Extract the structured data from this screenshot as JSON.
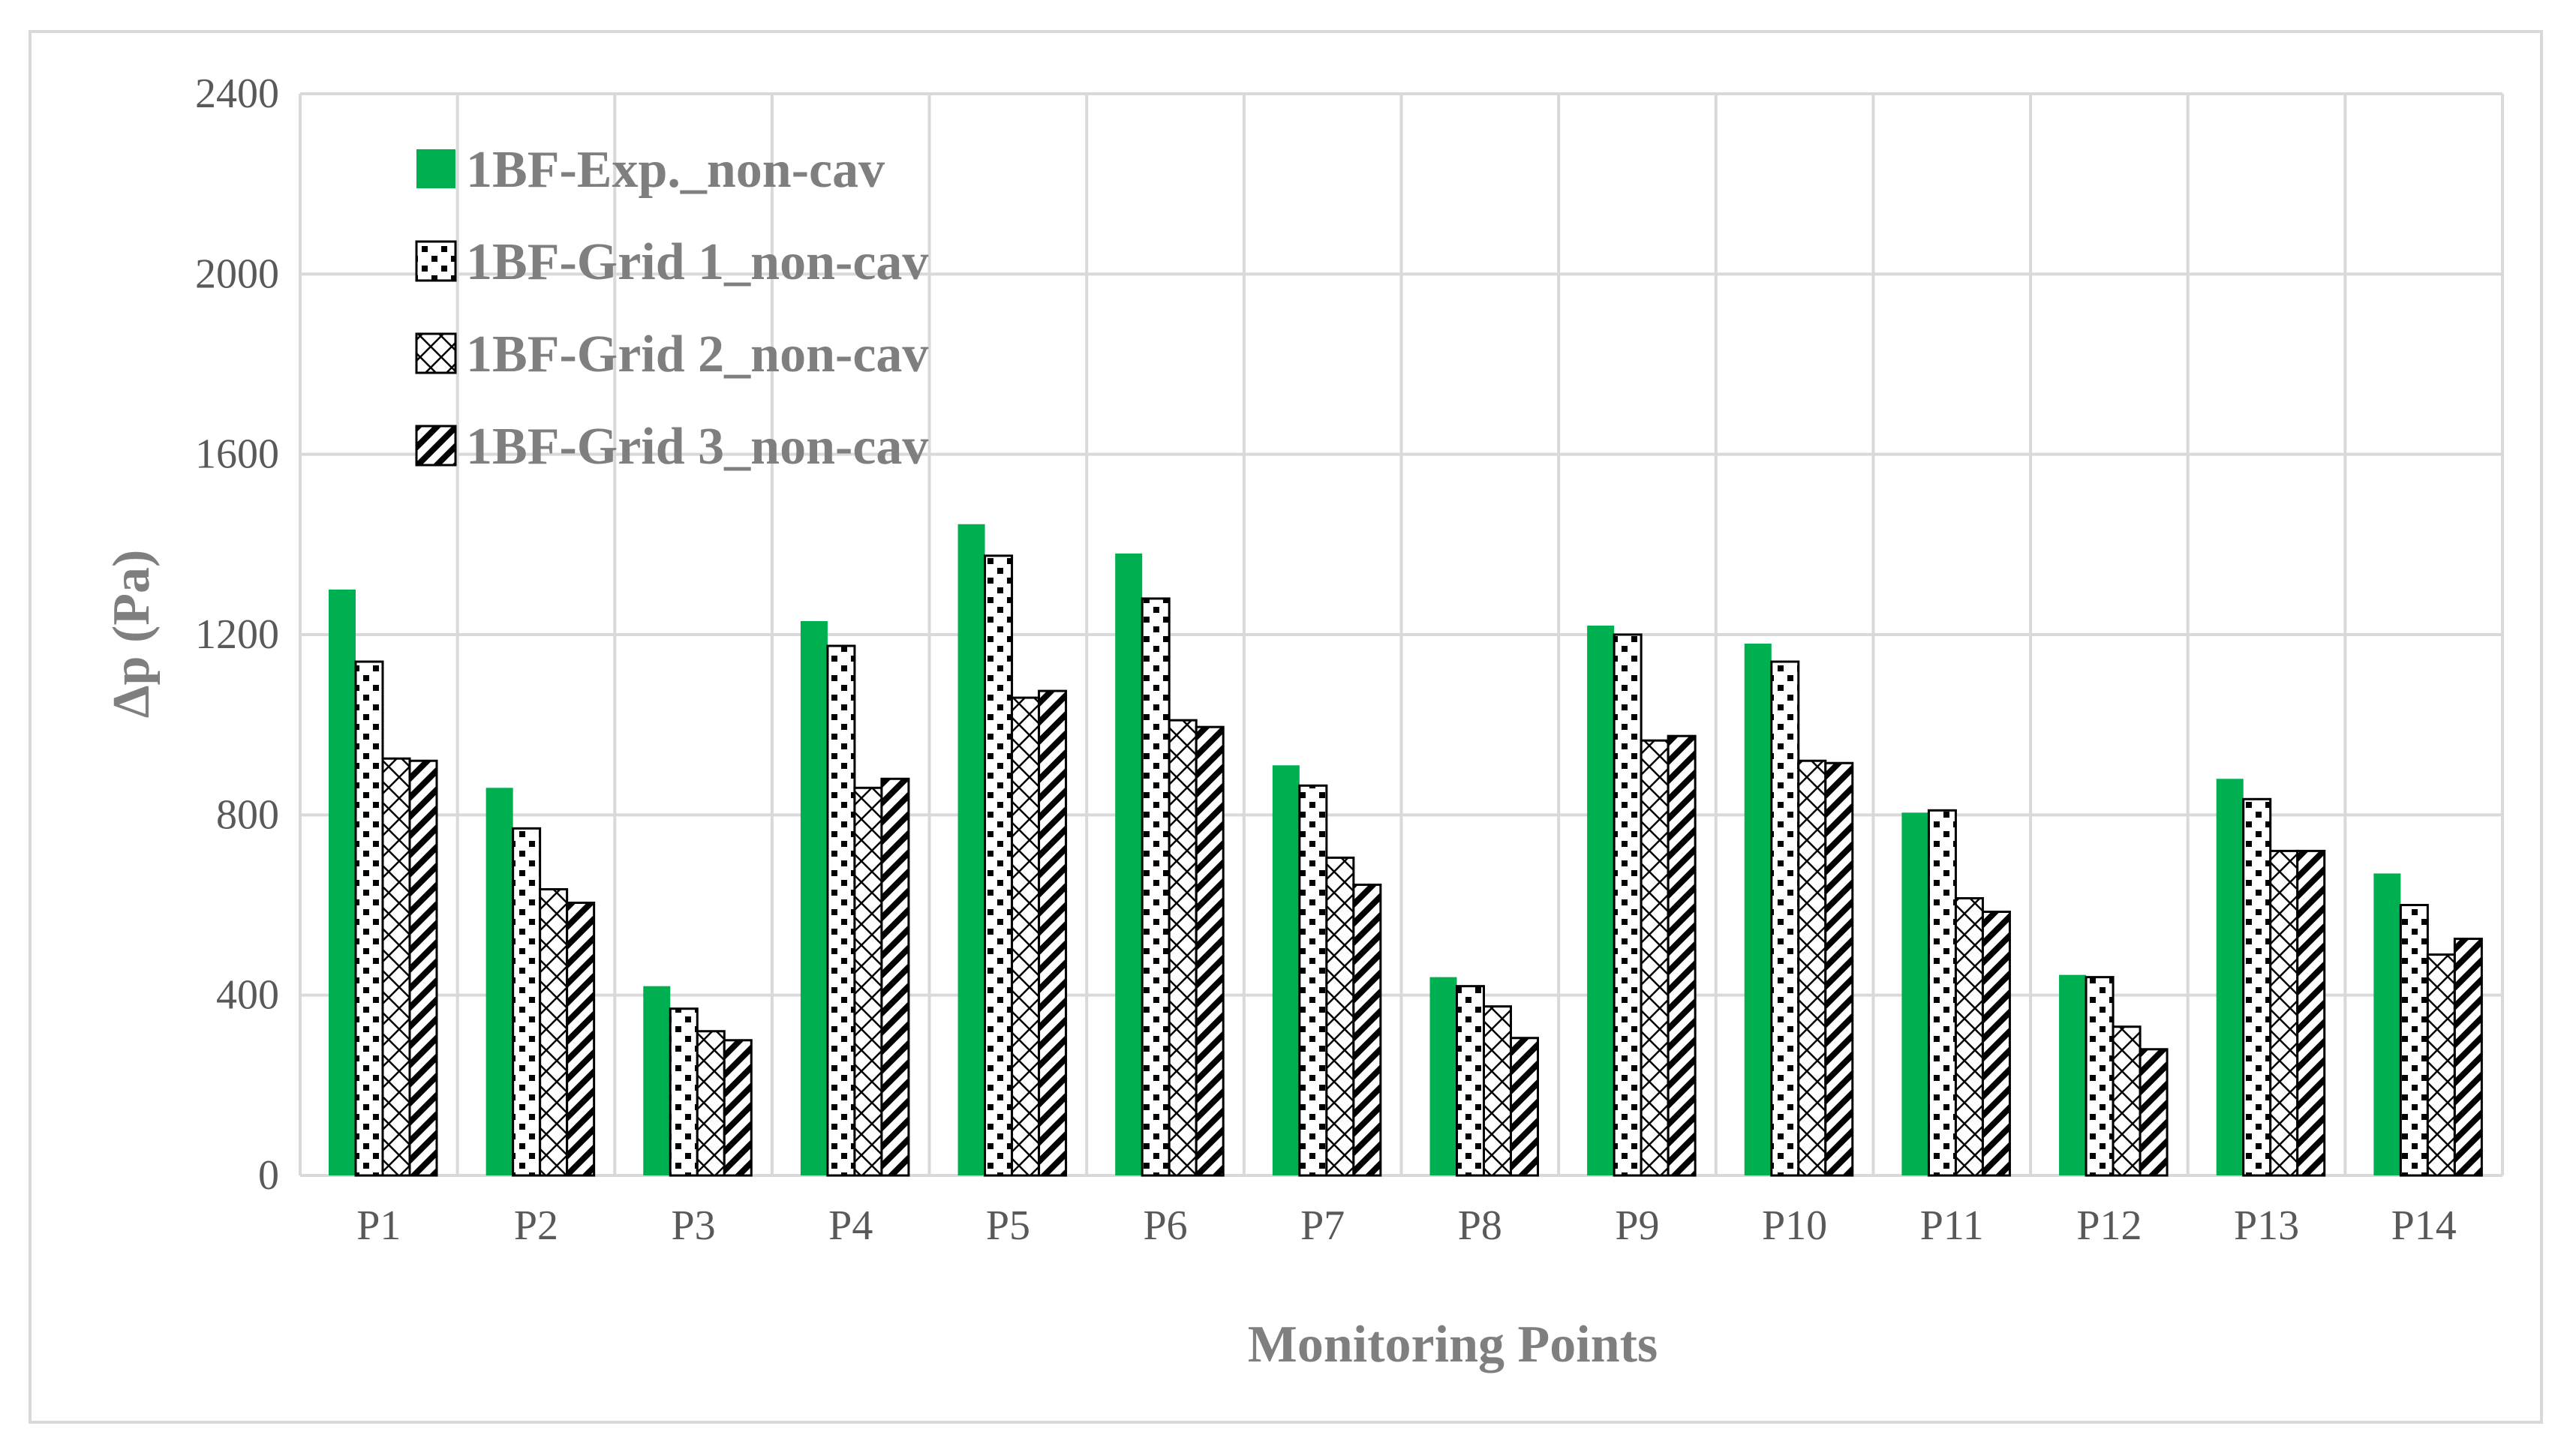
{
  "chart_data": {
    "type": "bar",
    "title": "",
    "xlabel": "Monitoring Points",
    "ylabel": "Δp (Pa)",
    "ylim": [
      0,
      2400
    ],
    "yticks": [
      0,
      400,
      800,
      1200,
      1600,
      2000,
      2400
    ],
    "grid": true,
    "legend_position": "top-left",
    "categories": [
      "P1",
      "P2",
      "P3",
      "P4",
      "P5",
      "P6",
      "P7",
      "P8",
      "P9",
      "P10",
      "P11",
      "P12",
      "P13",
      "P14"
    ],
    "series": [
      {
        "name": "1BF-Exp._non-cav",
        "pattern": "solid",
        "color": "#00b050",
        "values": [
          1300,
          860,
          420,
          1230,
          1445,
          1380,
          910,
          440,
          1220,
          1180,
          805,
          445,
          880,
          670
        ]
      },
      {
        "name": "1BF-Grid 1_non-cav",
        "pattern": "dots",
        "color": "#000000",
        "values": [
          1140,
          770,
          370,
          1175,
          1375,
          1280,
          865,
          420,
          1200,
          1140,
          810,
          440,
          835,
          600
        ]
      },
      {
        "name": "1BF-Grid 2_non-cav",
        "pattern": "diamonds",
        "color": "#000000",
        "values": [
          925,
          635,
          320,
          860,
          1060,
          1010,
          705,
          375,
          965,
          920,
          615,
          330,
          720,
          490
        ]
      },
      {
        "name": "1BF-Grid 3_non-cav",
        "pattern": "diagonal",
        "color": "#000000",
        "values": [
          920,
          605,
          300,
          880,
          1075,
          995,
          645,
          305,
          975,
          915,
          585,
          280,
          720,
          525
        ]
      }
    ]
  }
}
